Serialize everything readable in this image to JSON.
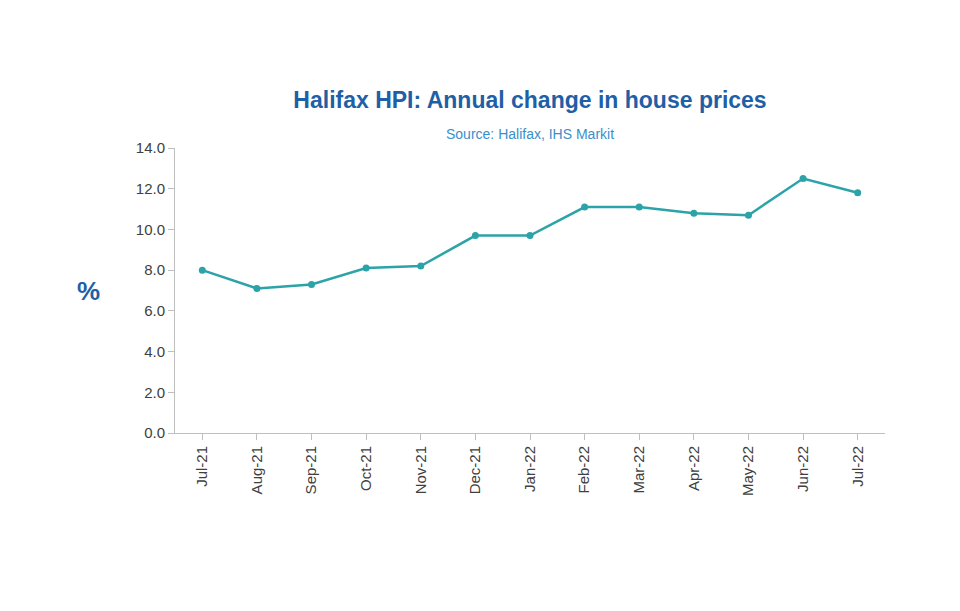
{
  "chart_data": {
    "type": "line",
    "title": "Halifax HPI: Annual change in house prices",
    "subtitle": "Source: Halifax, IHS Markit",
    "y_label": "%",
    "categories": [
      "Jul-21",
      "Aug-21",
      "Sep-21",
      "Oct-21",
      "Nov-21",
      "Dec-21",
      "Jan-22",
      "Feb-22",
      "Mar-22",
      "Apr-22",
      "May-22",
      "Jun-22",
      "Jul-22"
    ],
    "values": [
      8.0,
      7.1,
      7.3,
      8.1,
      8.2,
      9.7,
      9.7,
      11.1,
      11.1,
      10.8,
      10.7,
      12.5,
      11.8
    ],
    "color": "#2ba3a8",
    "marker": "circle",
    "ylim": [
      0,
      14
    ],
    "yticks": [
      {
        "value": 0,
        "label": "0.0"
      },
      {
        "value": 2,
        "label": "2.0"
      },
      {
        "value": 4,
        "label": "4.0"
      },
      {
        "value": 6,
        "label": "6.0"
      },
      {
        "value": 8,
        "label": "8.0"
      },
      {
        "value": 10,
        "label": "10.0"
      },
      {
        "value": 12,
        "label": "12.0"
      },
      {
        "value": 14,
        "label": "14.0"
      }
    ],
    "grid": false
  }
}
